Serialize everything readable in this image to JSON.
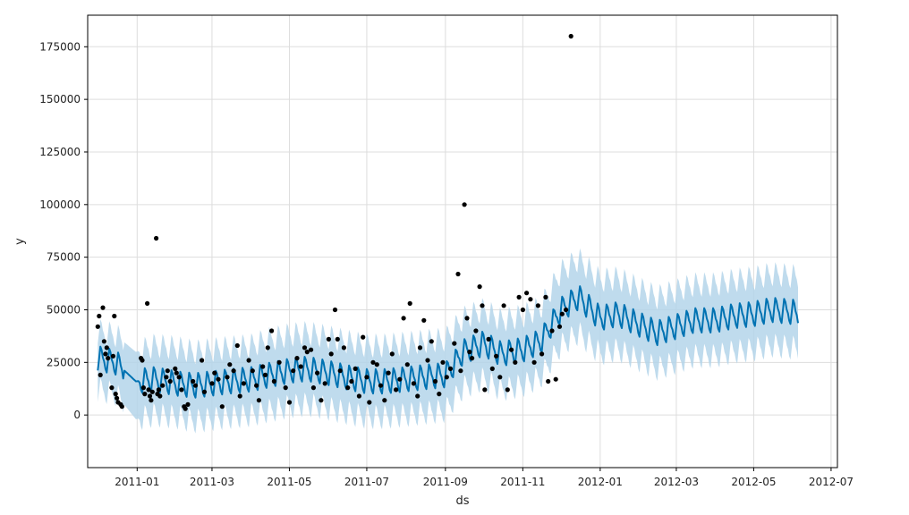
{
  "chart_data": {
    "type": "line",
    "title": "",
    "xlabel": "ds",
    "ylabel": "y",
    "x_axis_type": "date",
    "xlim": [
      "2010-11-23",
      "2012-07-06"
    ],
    "ylim": [
      -25000,
      190000
    ],
    "grid": true,
    "x_ticks": [
      "2011-01",
      "2011-03",
      "2011-05",
      "2011-07",
      "2011-09",
      "2011-11",
      "2012-01",
      "2012-03",
      "2012-05",
      "2012-07"
    ],
    "x_tick_dates": [
      "2011-01-01",
      "2011-03-01",
      "2011-05-01",
      "2011-07-01",
      "2011-09-01",
      "2011-11-01",
      "2012-01-01",
      "2012-03-01",
      "2012-05-01",
      "2012-07-01"
    ],
    "y_ticks": [
      0,
      25000,
      50000,
      75000,
      100000,
      125000,
      150000,
      175000
    ],
    "colors": {
      "forecast": "#0072B2",
      "interval": "#B4D5EA",
      "observed": "#000000",
      "grid": "#dddddd"
    },
    "forecast": {
      "name": "yhat",
      "x": [
        "2010-12-01",
        "2010-12-15",
        "2010-12-31",
        "2011-01-15",
        "2011-02-01",
        "2011-02-15",
        "2011-03-01",
        "2011-03-15",
        "2011-04-01",
        "2011-04-15",
        "2011-05-01",
        "2011-05-15",
        "2011-06-01",
        "2011-06-15",
        "2011-07-01",
        "2011-07-15",
        "2011-08-01",
        "2011-08-15",
        "2011-09-01",
        "2011-09-15",
        "2011-10-01",
        "2011-10-15",
        "2011-11-01",
        "2011-11-15",
        "2011-12-01",
        "2011-12-15",
        "2012-01-01",
        "2012-01-15",
        "2012-02-01",
        "2012-02-15",
        "2012-03-01",
        "2012-03-15",
        "2012-04-01",
        "2012-04-15",
        "2012-05-01",
        "2012-05-15",
        "2012-06-01",
        "2012-06-05"
      ],
      "yhat": [
        27000,
        25000,
        16000,
        17000,
        15000,
        14000,
        15000,
        16000,
        17000,
        19000,
        21000,
        22000,
        20000,
        18000,
        16000,
        16000,
        17000,
        18000,
        19000,
        30000,
        34000,
        29000,
        31000,
        35000,
        50000,
        56000,
        46000,
        48000,
        43000,
        39000,
        42000,
        45000,
        45000,
        47000,
        48000,
        50000,
        49000,
        48000
      ],
      "yhat_lower": [
        12000,
        10000,
        -2000,
        0,
        -1000,
        -3000,
        -2000,
        -1000,
        0,
        2000,
        4000,
        5000,
        3000,
        1000,
        -1000,
        -1000,
        0,
        1000,
        2000,
        13000,
        17000,
        12000,
        14000,
        18000,
        33000,
        39000,
        29000,
        31000,
        26000,
        22000,
        25000,
        28000,
        28000,
        30000,
        31000,
        33000,
        32000,
        31000
      ],
      "yhat_upper": [
        40000,
        38000,
        30000,
        33000,
        32000,
        30000,
        31000,
        32000,
        33000,
        36000,
        38000,
        39000,
        37000,
        35000,
        33000,
        33000,
        34000,
        35000,
        36000,
        46000,
        50000,
        45000,
        47000,
        51000,
        68000,
        74000,
        64000,
        65000,
        60000,
        56000,
        59000,
        62000,
        62000,
        64000,
        65000,
        67000,
        66000,
        65000
      ]
    },
    "observed": {
      "name": "y",
      "points": [
        {
          "x": "2010-12-01",
          "y": 42000
        },
        {
          "x": "2010-12-02",
          "y": 47000
        },
        {
          "x": "2010-12-03",
          "y": 19000
        },
        {
          "x": "2010-12-05",
          "y": 51000
        },
        {
          "x": "2010-12-06",
          "y": 35000
        },
        {
          "x": "2010-12-07",
          "y": 29000
        },
        {
          "x": "2010-12-08",
          "y": 32000
        },
        {
          "x": "2010-12-09",
          "y": 27000
        },
        {
          "x": "2010-12-12",
          "y": 13000
        },
        {
          "x": "2010-12-13",
          "y": 28000
        },
        {
          "x": "2010-12-14",
          "y": 47000
        },
        {
          "x": "2010-12-15",
          "y": 10000
        },
        {
          "x": "2010-12-16",
          "y": 8000
        },
        {
          "x": "2010-12-17",
          "y": 6000
        },
        {
          "x": "2010-12-19",
          "y": 5000
        },
        {
          "x": "2010-12-20",
          "y": 4000
        },
        {
          "x": "2011-01-04",
          "y": 27000
        },
        {
          "x": "2011-01-05",
          "y": 26000
        },
        {
          "x": "2011-01-06",
          "y": 13000
        },
        {
          "x": "2011-01-07",
          "y": 10000
        },
        {
          "x": "2011-01-09",
          "y": 53000
        },
        {
          "x": "2011-01-10",
          "y": 12000
        },
        {
          "x": "2011-01-11",
          "y": 9000
        },
        {
          "x": "2011-01-12",
          "y": 7000
        },
        {
          "x": "2011-01-13",
          "y": 11000
        },
        {
          "x": "2011-01-16",
          "y": 84000
        },
        {
          "x": "2011-01-17",
          "y": 10000
        },
        {
          "x": "2011-01-18",
          "y": 12000
        },
        {
          "x": "2011-01-19",
          "y": 9000
        },
        {
          "x": "2011-01-21",
          "y": 14000
        },
        {
          "x": "2011-01-24",
          "y": 18000
        },
        {
          "x": "2011-01-25",
          "y": 21000
        },
        {
          "x": "2011-01-27",
          "y": 16000
        },
        {
          "x": "2011-01-31",
          "y": 22000
        },
        {
          "x": "2011-02-01",
          "y": 20000
        },
        {
          "x": "2011-02-03",
          "y": 18000
        },
        {
          "x": "2011-02-05",
          "y": 12000
        },
        {
          "x": "2011-02-07",
          "y": 4000
        },
        {
          "x": "2011-02-08",
          "y": 3000
        },
        {
          "x": "2011-02-10",
          "y": 5000
        },
        {
          "x": "2011-02-14",
          "y": 16000
        },
        {
          "x": "2011-02-16",
          "y": 14000
        },
        {
          "x": "2011-02-21",
          "y": 26000
        },
        {
          "x": "2011-02-23",
          "y": 11000
        },
        {
          "x": "2011-03-01",
          "y": 15000
        },
        {
          "x": "2011-03-03",
          "y": 20000
        },
        {
          "x": "2011-03-06",
          "y": 17000
        },
        {
          "x": "2011-03-09",
          "y": 4000
        },
        {
          "x": "2011-03-13",
          "y": 18000
        },
        {
          "x": "2011-03-15",
          "y": 24000
        },
        {
          "x": "2011-03-18",
          "y": 21000
        },
        {
          "x": "2011-03-21",
          "y": 33000
        },
        {
          "x": "2011-03-23",
          "y": 9000
        },
        {
          "x": "2011-03-26",
          "y": 15000
        },
        {
          "x": "2011-03-30",
          "y": 26000
        },
        {
          "x": "2011-04-02",
          "y": 21000
        },
        {
          "x": "2011-04-05",
          "y": 14000
        },
        {
          "x": "2011-04-07",
          "y": 7000
        },
        {
          "x": "2011-04-10",
          "y": 23000
        },
        {
          "x": "2011-04-12",
          "y": 19000
        },
        {
          "x": "2011-04-14",
          "y": 32000
        },
        {
          "x": "2011-04-17",
          "y": 40000
        },
        {
          "x": "2011-04-19",
          "y": 16000
        },
        {
          "x": "2011-04-23",
          "y": 25000
        },
        {
          "x": "2011-04-28",
          "y": 13000
        },
        {
          "x": "2011-05-01",
          "y": 6000
        },
        {
          "x": "2011-05-04",
          "y": 21000
        },
        {
          "x": "2011-05-07",
          "y": 27000
        },
        {
          "x": "2011-05-10",
          "y": 23000
        },
        {
          "x": "2011-05-13",
          "y": 32000
        },
        {
          "x": "2011-05-15",
          "y": 30000
        },
        {
          "x": "2011-05-18",
          "y": 31000
        },
        {
          "x": "2011-05-20",
          "y": 13000
        },
        {
          "x": "2011-05-23",
          "y": 20000
        },
        {
          "x": "2011-05-26",
          "y": 7000
        },
        {
          "x": "2011-05-29",
          "y": 15000
        },
        {
          "x": "2011-06-01",
          "y": 36000
        },
        {
          "x": "2011-06-03",
          "y": 29000
        },
        {
          "x": "2011-06-06",
          "y": 50000
        },
        {
          "x": "2011-06-08",
          "y": 36000
        },
        {
          "x": "2011-06-10",
          "y": 21000
        },
        {
          "x": "2011-06-13",
          "y": 32000
        },
        {
          "x": "2011-06-16",
          "y": 13000
        },
        {
          "x": "2011-06-19",
          "y": 16000
        },
        {
          "x": "2011-06-22",
          "y": 22000
        },
        {
          "x": "2011-06-25",
          "y": 9000
        },
        {
          "x": "2011-06-28",
          "y": 37000
        },
        {
          "x": "2011-07-01",
          "y": 18000
        },
        {
          "x": "2011-07-03",
          "y": 6000
        },
        {
          "x": "2011-07-06",
          "y": 25000
        },
        {
          "x": "2011-07-09",
          "y": 24000
        },
        {
          "x": "2011-07-12",
          "y": 14000
        },
        {
          "x": "2011-07-15",
          "y": 7000
        },
        {
          "x": "2011-07-18",
          "y": 20000
        },
        {
          "x": "2011-07-21",
          "y": 29000
        },
        {
          "x": "2011-07-24",
          "y": 12000
        },
        {
          "x": "2011-07-27",
          "y": 17000
        },
        {
          "x": "2011-07-30",
          "y": 46000
        },
        {
          "x": "2011-08-02",
          "y": 24000
        },
        {
          "x": "2011-08-04",
          "y": 53000
        },
        {
          "x": "2011-08-07",
          "y": 15000
        },
        {
          "x": "2011-08-10",
          "y": 9000
        },
        {
          "x": "2011-08-12",
          "y": 32000
        },
        {
          "x": "2011-08-15",
          "y": 45000
        },
        {
          "x": "2011-08-18",
          "y": 26000
        },
        {
          "x": "2011-08-21",
          "y": 35000
        },
        {
          "x": "2011-08-24",
          "y": 16000
        },
        {
          "x": "2011-08-27",
          "y": 10000
        },
        {
          "x": "2011-08-30",
          "y": 25000
        },
        {
          "x": "2011-09-02",
          "y": 18000
        },
        {
          "x": "2011-09-05",
          "y": 22000
        },
        {
          "x": "2011-09-08",
          "y": 34000
        },
        {
          "x": "2011-09-11",
          "y": 67000
        },
        {
          "x": "2011-09-13",
          "y": 21000
        },
        {
          "x": "2011-09-16",
          "y": 100000
        },
        {
          "x": "2011-09-18",
          "y": 46000
        },
        {
          "x": "2011-09-20",
          "y": 30000
        },
        {
          "x": "2011-09-22",
          "y": 27000
        },
        {
          "x": "2011-09-25",
          "y": 40000
        },
        {
          "x": "2011-09-28",
          "y": 61000
        },
        {
          "x": "2011-09-30",
          "y": 52000
        },
        {
          "x": "2011-10-02",
          "y": 12000
        },
        {
          "x": "2011-10-05",
          "y": 36000
        },
        {
          "x": "2011-10-08",
          "y": 22000
        },
        {
          "x": "2011-10-11",
          "y": 28000
        },
        {
          "x": "2011-10-14",
          "y": 18000
        },
        {
          "x": "2011-10-17",
          "y": 52000
        },
        {
          "x": "2011-10-20",
          "y": 12000
        },
        {
          "x": "2011-10-23",
          "y": 31000
        },
        {
          "x": "2011-10-26",
          "y": 25000
        },
        {
          "x": "2011-10-29",
          "y": 56000
        },
        {
          "x": "2011-11-01",
          "y": 50000
        },
        {
          "x": "2011-11-04",
          "y": 58000
        },
        {
          "x": "2011-11-07",
          "y": 55000
        },
        {
          "x": "2011-11-10",
          "y": 25000
        },
        {
          "x": "2011-11-13",
          "y": 52000
        },
        {
          "x": "2011-11-16",
          "y": 29000
        },
        {
          "x": "2011-11-19",
          "y": 56000
        },
        {
          "x": "2011-11-21",
          "y": 16000
        },
        {
          "x": "2011-11-24",
          "y": 40000
        },
        {
          "x": "2011-11-27",
          "y": 17000
        },
        {
          "x": "2011-11-30",
          "y": 42000
        },
        {
          "x": "2011-12-02",
          "y": 48000
        },
        {
          "x": "2011-12-05",
          "y": 50000
        },
        {
          "x": "2011-12-09",
          "y": 180000
        }
      ]
    }
  }
}
